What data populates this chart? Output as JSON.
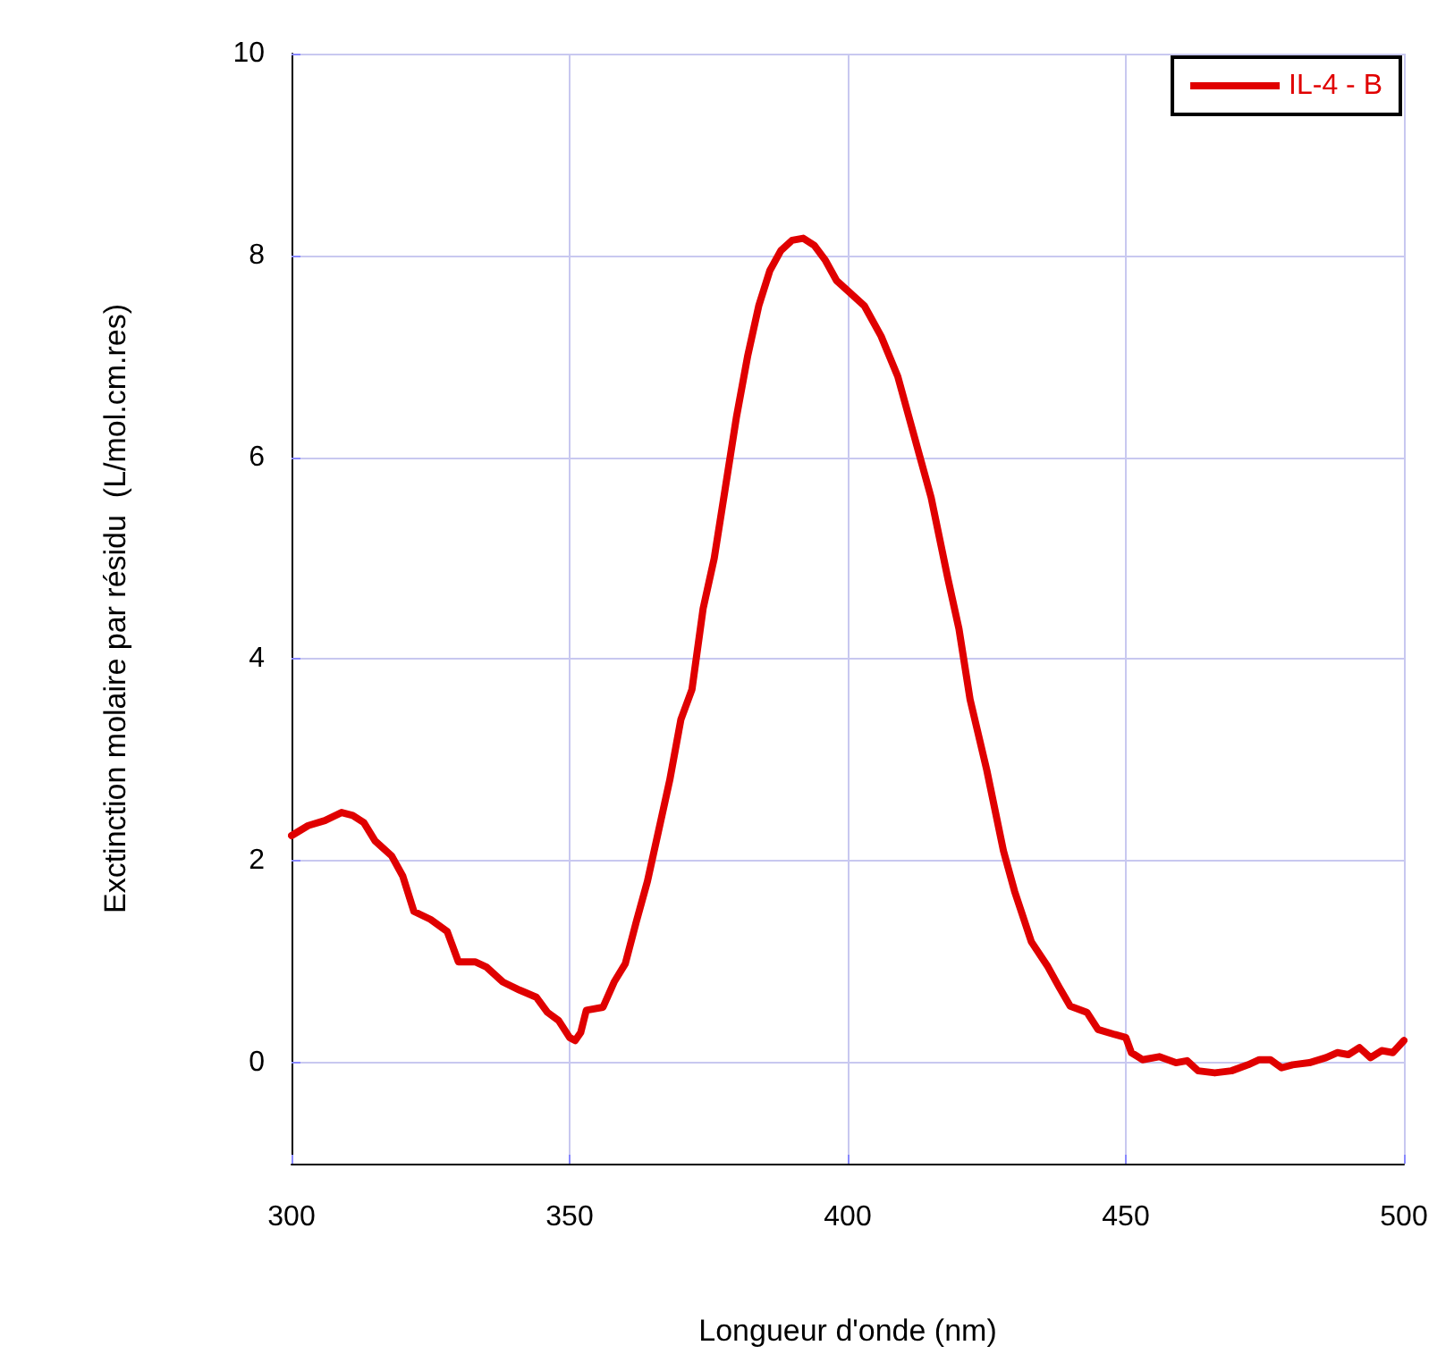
{
  "chart_data": {
    "type": "line",
    "xlabel": "Longueur d'onde (nm)",
    "ylabel": "Exctinction molaire par résidu  (L/mol.cm.res)",
    "xlim": [
      300,
      500
    ],
    "xticks": [
      300,
      350,
      400,
      450,
      500
    ],
    "ylim": [
      -1,
      10
    ],
    "yticks": [
      0,
      2,
      4,
      6,
      8,
      10
    ],
    "grid": true,
    "legend": "top right",
    "marker": "none",
    "line_style": "solid",
    "series": [
      {
        "name": "IL-4 - B",
        "color": "#e00000",
        "x": [
          300,
          303,
          306,
          309,
          311,
          313,
          315,
          318,
          320,
          322,
          325,
          328,
          330,
          333,
          335,
          338,
          341,
          344,
          346,
          348,
          350,
          351,
          352,
          353,
          356,
          358,
          360,
          362,
          364,
          366,
          368,
          370,
          372,
          374,
          376,
          378,
          380,
          382,
          384,
          386,
          388,
          390,
          392,
          394,
          396,
          398,
          400,
          403,
          406,
          409,
          412,
          415,
          418,
          420,
          422,
          425,
          428,
          430,
          433,
          436,
          438,
          440,
          443,
          445,
          448,
          450,
          451,
          453,
          456,
          459,
          461,
          463,
          466,
          469,
          472,
          474,
          476,
          478,
          480,
          483,
          486,
          488,
          490,
          492,
          494,
          496,
          498,
          500
        ],
        "values": [
          2.25,
          2.35,
          2.4,
          2.48,
          2.45,
          2.38,
          2.2,
          2.05,
          1.85,
          1.5,
          1.42,
          1.3,
          1.0,
          1.0,
          0.95,
          0.8,
          0.72,
          0.65,
          0.5,
          0.42,
          0.25,
          0.22,
          0.3,
          0.52,
          0.55,
          0.8,
          0.98,
          1.4,
          1.8,
          2.3,
          2.8,
          3.4,
          3.7,
          4.5,
          5.0,
          5.7,
          6.4,
          7.0,
          7.5,
          7.85,
          8.05,
          8.15,
          8.17,
          8.1,
          7.95,
          7.75,
          7.65,
          7.5,
          7.2,
          6.8,
          6.2,
          5.6,
          4.8,
          4.3,
          3.6,
          2.9,
          2.1,
          1.7,
          1.2,
          0.95,
          0.75,
          0.56,
          0.5,
          0.33,
          0.28,
          0.25,
          0.1,
          0.03,
          0.06,
          0.0,
          0.02,
          -0.08,
          -0.1,
          -0.08,
          -0.02,
          0.03,
          0.03,
          -0.05,
          -0.02,
          0.0,
          0.05,
          0.1,
          0.08,
          0.15,
          0.05,
          0.12,
          0.1,
          0.22
        ]
      }
    ]
  }
}
